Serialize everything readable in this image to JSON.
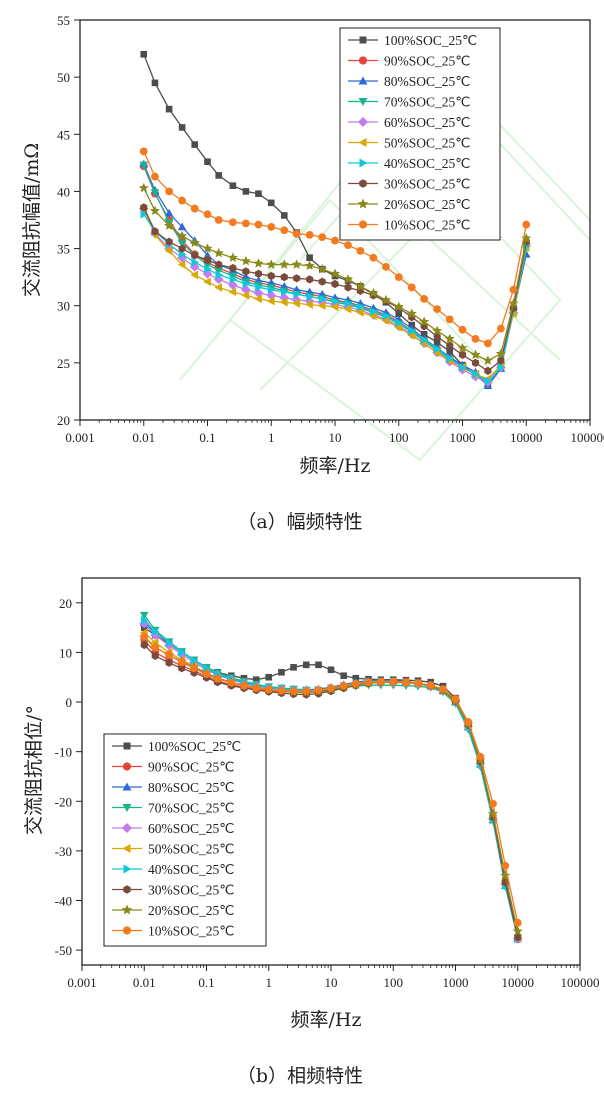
{
  "colors": {
    "100%SOC_25℃": "#4d4d4d",
    "90%SOC_25℃": "#e8443c",
    "80%SOC_25℃": "#2f6bd6",
    "70%SOC_25℃": "#1bb38e",
    "60%SOC_25℃": "#c27cf0",
    "50%SOC_25℃": "#d9a800",
    "40%SOC_25℃": "#12c8d8",
    "30%SOC_25℃": "#7a4a3a",
    "20%SOC_25℃": "#8a8a1a",
    "10%SOC_25℃": "#f47a1f"
  },
  "markers": [
    "square",
    "circle",
    "triangle-up",
    "triangle-down",
    "diamond",
    "triangle-left",
    "triangle-right",
    "hexagon",
    "star",
    "circle"
  ],
  "chart_data": [
    {
      "type": "line",
      "caption": "（a）幅频特性",
      "xlabel": "频率/Hz",
      "ylabel": "交流阻抗幅值/mΩ",
      "xscale": "log",
      "xlim": [
        0.001,
        100000
      ],
      "ylim": [
        20,
        55
      ],
      "xticks": [
        "0.001",
        "0.01",
        "0.1",
        "1",
        "10",
        "100",
        "1000",
        "10000",
        "100000"
      ],
      "yticks": [
        "20",
        "25",
        "30",
        "35",
        "40",
        "45",
        "50",
        "55"
      ],
      "legend_position": "top-right",
      "x": [
        0.01,
        0.015,
        0.025,
        0.04,
        0.063,
        0.1,
        0.15,
        0.25,
        0.4,
        0.63,
        1,
        1.6,
        2.5,
        4,
        6.3,
        10,
        16,
        25,
        40,
        63,
        100,
        160,
        250,
        400,
        630,
        1000,
        1600,
        2500,
        4000,
        6300,
        10000
      ],
      "series": [
        {
          "name": "100%SOC_25℃",
          "values": [
            52,
            49.5,
            47.2,
            45.6,
            44.1,
            42.6,
            41.4,
            40.5,
            40,
            39.8,
            39,
            37.9,
            36.4,
            34.2,
            33.2,
            32.6,
            32.2,
            31.7,
            31,
            30.3,
            29.3,
            28.3,
            27.5,
            26.8,
            26,
            24.8,
            23.9,
            23.1,
            24.7,
            29.8,
            35.5
          ]
        },
        {
          "name": "90%SOC_25℃",
          "values": [
            42.2,
            39.8,
            37.5,
            35.7,
            34.5,
            33.8,
            33.3,
            32.8,
            32.3,
            32,
            31.8,
            31.5,
            31.2,
            31,
            30.8,
            30.5,
            30.3,
            30,
            29.6,
            29.2,
            28.6,
            27.8,
            27,
            26.2,
            25.4,
            24.7,
            24,
            23.4,
            24.6,
            29.7,
            35.4
          ]
        },
        {
          "name": "80%SOC_25℃",
          "values": [
            42.4,
            40.1,
            38.1,
            36.9,
            35.7,
            34.4,
            33.6,
            33.1,
            32.5,
            32.2,
            32,
            31.7,
            31.4,
            31.2,
            31,
            30.7,
            30.5,
            30.2,
            29.8,
            29.4,
            28.8,
            28,
            27.1,
            26.3,
            25.5,
            24.8,
            24.2,
            23,
            24.5,
            29.5,
            34.5
          ]
        },
        {
          "name": "70%SOC_25℃",
          "values": [
            42.3,
            39.9,
            37.3,
            35.5,
            34.4,
            33.6,
            33.1,
            32.6,
            32.1,
            31.8,
            31.6,
            31.3,
            31,
            30.8,
            30.6,
            30.3,
            30.1,
            29.8,
            29.4,
            29,
            28.4,
            27.7,
            26.9,
            26.1,
            25.3,
            24.6,
            24,
            23.2,
            24.7,
            29.6,
            35
          ]
        },
        {
          "name": "60%SOC_25℃",
          "values": [
            38.5,
            36.3,
            35,
            34.2,
            33.4,
            32.8,
            32.3,
            31.8,
            31.4,
            31.1,
            30.9,
            30.7,
            30.5,
            30.4,
            30.3,
            30.1,
            29.9,
            29.6,
            29.2,
            28.8,
            28.2,
            27.5,
            26.7,
            25.9,
            25.1,
            24.4,
            23.8,
            23.3,
            24.6,
            29.4,
            35.3
          ]
        },
        {
          "name": "50%SOC_25℃",
          "values": [
            38.5,
            36.2,
            34.8,
            33.6,
            32.7,
            32.1,
            31.6,
            31.2,
            30.9,
            30.6,
            30.4,
            30.3,
            30.2,
            30.1,
            30,
            29.9,
            29.7,
            29.4,
            29.1,
            28.7,
            28.1,
            27.4,
            26.7,
            25.9,
            25.2,
            24.6,
            24,
            23.6,
            24.8,
            29.3,
            35.1
          ]
        },
        {
          "name": "40%SOC_25℃",
          "values": [
            38,
            36.5,
            35.4,
            34.5,
            33.8,
            33.2,
            32.7,
            32.3,
            31.9,
            31.6,
            31.4,
            31.2,
            31,
            30.8,
            30.6,
            30.4,
            30.2,
            29.9,
            29.5,
            29.1,
            28.5,
            27.8,
            27,
            26.2,
            25.4,
            24.6,
            24,
            23.4,
            24.6,
            29.6,
            35.2
          ]
        },
        {
          "name": "30%SOC_25℃",
          "values": [
            38.6,
            36.5,
            35.6,
            35,
            34.4,
            34,
            33.6,
            33.3,
            33,
            32.8,
            32.6,
            32.5,
            32.4,
            32.3,
            32.1,
            31.9,
            31.6,
            31.3,
            30.9,
            30.4,
            29.8,
            29,
            28.2,
            27.3,
            26.5,
            25.7,
            25,
            24.3,
            25.2,
            29.8,
            35.6
          ]
        },
        {
          "name": "20%SOC_25℃",
          "values": [
            40.3,
            38.3,
            37,
            36.1,
            35.5,
            35,
            34.6,
            34.2,
            33.9,
            33.7,
            33.6,
            33.6,
            33.6,
            33.5,
            33.2,
            32.8,
            32.3,
            31.7,
            31.1,
            30.5,
            29.9,
            29.3,
            28.6,
            27.8,
            27.1,
            26.3,
            25.7,
            25.2,
            25.8,
            30.2,
            35.9
          ]
        },
        {
          "name": "10%SOC_25℃",
          "values": [
            43.5,
            41.3,
            40,
            39.2,
            38.5,
            38,
            37.5,
            37.3,
            37.2,
            37.1,
            36.9,
            36.6,
            36.3,
            36.2,
            36,
            35.7,
            35.3,
            34.8,
            34.2,
            33.4,
            32.5,
            31.6,
            30.6,
            29.7,
            28.8,
            27.9,
            27.1,
            26.7,
            28,
            31.4,
            37.1
          ]
        }
      ]
    },
    {
      "type": "line",
      "caption": "（b）相频特性",
      "xlabel": "频率/Hz",
      "ylabel": "交流阻抗相位/°",
      "xscale": "log",
      "xlim": [
        0.001,
        100000
      ],
      "ylim": [
        -53,
        25
      ],
      "xticks": [
        "0.001",
        "0.01",
        "0.1",
        "1",
        "10",
        "100",
        "1000",
        "10000",
        "100000"
      ],
      "yticks": [
        "20",
        "10",
        "0",
        "-10",
        "-20",
        "-30",
        "-40",
        "-50"
      ],
      "legend_position": "bottom-left",
      "x": [
        0.01,
        0.015,
        0.025,
        0.04,
        0.063,
        0.1,
        0.15,
        0.25,
        0.4,
        0.63,
        1,
        1.6,
        2.5,
        4,
        6.3,
        10,
        16,
        25,
        40,
        63,
        100,
        160,
        250,
        400,
        630,
        1000,
        1600,
        2500,
        4000,
        6300,
        10000
      ],
      "series": [
        {
          "name": "100%SOC_25℃",
          "values": [
            15,
            13.5,
            11.8,
            10,
            8.5,
            7,
            6,
            5.3,
            4.8,
            4.5,
            5,
            6,
            7,
            7.5,
            7.5,
            6.5,
            5.3,
            4.8,
            4.6,
            4.5,
            4.5,
            4.4,
            4.3,
            4,
            3.2,
            0.8,
            -4.5,
            -12,
            -23,
            -36,
            -47.5
          ]
        },
        {
          "name": "90%SOC_25℃",
          "values": [
            12.5,
            10,
            8.5,
            7.3,
            6.3,
            5.2,
            4.3,
            3.5,
            3,
            2.6,
            2.3,
            2.1,
            2,
            1.9,
            2,
            2.4,
            2.9,
            3.4,
            3.8,
            4,
            4.1,
            4,
            3.8,
            3.3,
            2.4,
            0.2,
            -4.8,
            -12.3,
            -23.5,
            -36.5,
            -47.8
          ]
        },
        {
          "name": "80%SOC_25℃",
          "values": [
            16,
            14,
            12,
            10,
            8.4,
            6.9,
            5.8,
            4.8,
            4.1,
            3.5,
            3.1,
            2.8,
            2.6,
            2.5,
            2.6,
            3,
            3.5,
            4,
            4.3,
            4.4,
            4.3,
            4.1,
            3.8,
            3.3,
            2.3,
            0,
            -5,
            -12.5,
            -23.7,
            -37,
            -47.6
          ]
        },
        {
          "name": "70%SOC_25℃",
          "values": [
            17.5,
            14.5,
            12.2,
            10.2,
            8.5,
            7,
            5.9,
            4.9,
            4.2,
            3.6,
            3.1,
            2.8,
            2.6,
            2.4,
            2.4,
            2.6,
            2.9,
            3.2,
            3.4,
            3.4,
            3.4,
            3.3,
            3.2,
            2.9,
            2,
            -0.3,
            -5.5,
            -13,
            -24,
            -37.2,
            -47.5
          ]
        },
        {
          "name": "60%SOC_25℃",
          "values": [
            15.8,
            13.5,
            11.4,
            9.6,
            8,
            6.5,
            5.4,
            4.5,
            3.8,
            3.2,
            2.8,
            2.5,
            2.3,
            2.2,
            2.4,
            2.8,
            3.2,
            3.6,
            3.9,
            4,
            4,
            3.9,
            3.7,
            3.2,
            2.3,
            0.1,
            -4.9,
            -12.4,
            -23.6,
            -36.8,
            -47.7
          ]
        },
        {
          "name": "50%SOC_25℃",
          "values": [
            14,
            12,
            10,
            8.5,
            7.2,
            5.8,
            4.8,
            4,
            3.4,
            2.9,
            2.5,
            2.2,
            2,
            1.9,
            2.1,
            2.5,
            3,
            3.5,
            3.9,
            4.1,
            4.1,
            4,
            3.8,
            3.3,
            2.4,
            0.1,
            -4.8,
            -12.2,
            -23.4,
            -36.6,
            -47.6
          ]
        },
        {
          "name": "40%SOC_25℃",
          "values": [
            16.5,
            14.2,
            12,
            10,
            8.4,
            6.8,
            5.6,
            4.6,
            3.9,
            3.3,
            2.9,
            2.6,
            2.4,
            2.3,
            2.4,
            2.8,
            3.3,
            3.8,
            4.1,
            4.2,
            4.2,
            4,
            3.8,
            3.2,
            2.3,
            0,
            -5,
            -12.5,
            -23.8,
            -37,
            -47.7
          ]
        },
        {
          "name": "30%SOC_25℃",
          "values": [
            11.5,
            9.3,
            7.9,
            6.8,
            5.9,
            4.9,
            4,
            3.3,
            2.8,
            2.4,
            2.1,
            1.8,
            1.6,
            1.5,
            1.7,
            2.2,
            2.8,
            3.4,
            3.8,
            4,
            4.1,
            4,
            3.8,
            3.3,
            2.4,
            0.2,
            -4.6,
            -12,
            -23.2,
            -36.3,
            -47.4
          ]
        },
        {
          "name": "20%SOC_25℃",
          "values": [
            13,
            11,
            9.5,
            8.2,
            7,
            5.8,
            4.8,
            4,
            3.4,
            2.9,
            2.5,
            2.2,
            2,
            1.9,
            2.1,
            2.5,
            3,
            3.5,
            3.8,
            4,
            4,
            3.9,
            3.7,
            3.2,
            2.3,
            0.1,
            -4.5,
            -11.7,
            -22.5,
            -35,
            -46.2
          ]
        },
        {
          "name": "10%SOC_25℃",
          "values": [
            13.2,
            11,
            9.5,
            8,
            6.8,
            5.6,
            4.7,
            3.9,
            3.3,
            2.8,
            2.5,
            2.3,
            2.2,
            2.2,
            2.4,
            2.8,
            3.3,
            3.7,
            4,
            4.1,
            4.1,
            4,
            3.8,
            3.4,
            2.6,
            0.6,
            -4,
            -11,
            -20.5,
            -33,
            -44.5
          ]
        }
      ]
    }
  ]
}
